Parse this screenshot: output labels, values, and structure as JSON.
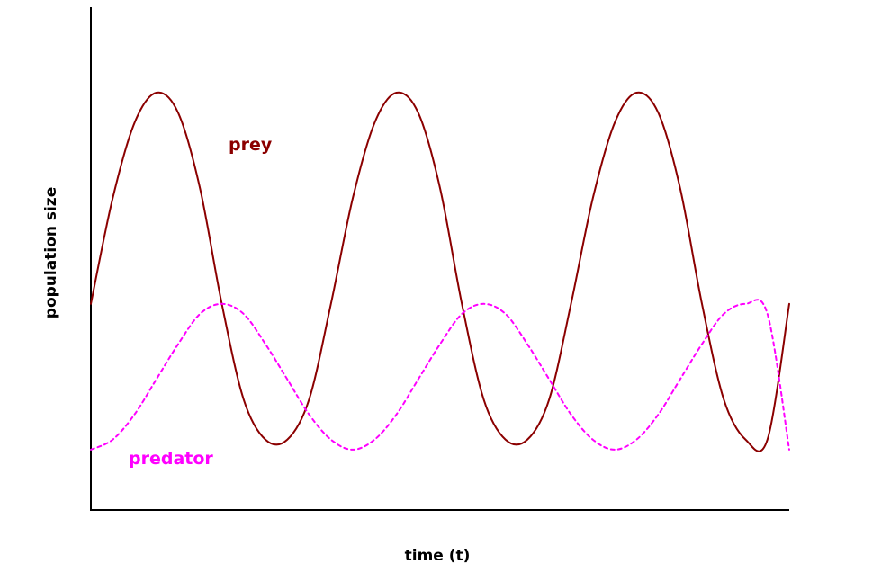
{
  "chart_data": {
    "type": "line",
    "title": "",
    "xlabel": "time (t)",
    "ylabel": "population size",
    "xlim": [
      0,
      2
    ],
    "ylim": [
      0,
      10
    ],
    "grid": false,
    "legend": "inline labels",
    "series": [
      {
        "name": "prey",
        "color": "#8b0000",
        "style": "solid",
        "x": [
          0,
          0.0625,
          0.125,
          0.1875,
          0.25,
          0.3125,
          0.375,
          0.4375,
          0.5,
          0.5625,
          0.625,
          0.6875,
          0.75,
          0.8125,
          0.875,
          0.9375,
          1.0,
          1.0625,
          1.125,
          1.1875,
          1.25,
          1.3125,
          1.375,
          1.4375,
          1.5,
          1.5625,
          1.625,
          1.6875,
          1.75,
          1.8125,
          1.875,
          1.9375,
          2.0
        ],
        "values": [
          4.1,
          6.2,
          7.7,
          8.3,
          7.9,
          6.4,
          4.1,
          2.2,
          1.4,
          1.4,
          2.2,
          4.1,
          6.2,
          7.7,
          8.3,
          7.9,
          6.4,
          4.1,
          2.2,
          1.4,
          1.4,
          2.2,
          4.1,
          6.2,
          7.7,
          8.3,
          7.9,
          6.4,
          4.1,
          2.2,
          1.4,
          1.4,
          4.1
        ]
      },
      {
        "name": "predator",
        "color": "#ff00ff",
        "style": "dashed",
        "x": [
          0,
          0.0625,
          0.125,
          0.1875,
          0.25,
          0.3125,
          0.375,
          0.4375,
          0.5,
          0.5625,
          0.625,
          0.6875,
          0.75,
          0.8125,
          0.875,
          0.9375,
          1.0,
          1.0625,
          1.125,
          1.1875,
          1.25,
          1.3125,
          1.375,
          1.4375,
          1.5,
          1.5625,
          1.625,
          1.6875,
          1.75,
          1.8125,
          1.875,
          1.9375,
          2.0
        ],
        "values": [
          1.2,
          1.4,
          1.9,
          2.6,
          3.3,
          3.9,
          4.1,
          3.9,
          3.3,
          2.6,
          1.9,
          1.4,
          1.2,
          1.4,
          1.9,
          2.6,
          3.3,
          3.9,
          4.1,
          3.9,
          3.3,
          2.6,
          1.9,
          1.4,
          1.2,
          1.4,
          1.9,
          2.6,
          3.3,
          3.9,
          4.1,
          3.9,
          1.2
        ]
      }
    ]
  }
}
